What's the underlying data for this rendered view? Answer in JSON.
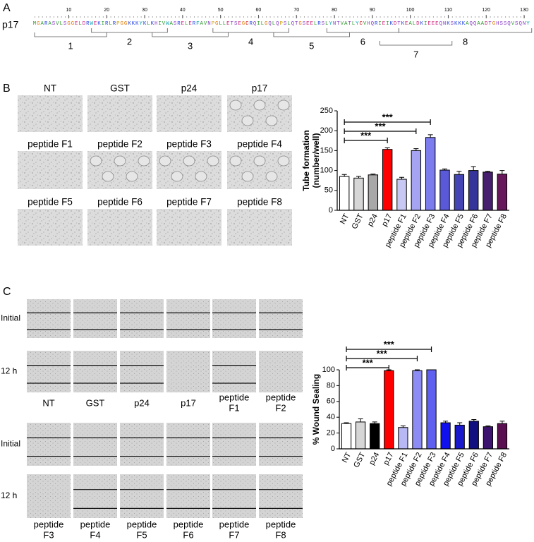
{
  "panel_labels": [
    "A",
    "B",
    "C"
  ],
  "panel_a": {
    "protein": "p17",
    "ruler": [
      10,
      20,
      30,
      40,
      50,
      60,
      70,
      80,
      90,
      100,
      110,
      120,
      130
    ],
    "sequence": "MGARASVLSGGELDRWEKIRLRPGGKKKYKLKHIVWASRELERFAVNPGLLETSEGCRQILGQLQPSLQTGSEELRSLYNTVATLYCVHQRIEIKDTKEALDKIEEEQNKSKKKAQQAADTGHSSQVSQNY",
    "fragments": [
      "1",
      "2",
      "3",
      "4",
      "5",
      "6",
      "7",
      "8"
    ]
  },
  "panel_b": {
    "image_labels": [
      "NT",
      "GST",
      "p24",
      "p17",
      "peptide F1",
      "peptide F2",
      "peptide F3",
      "peptide F4",
      "peptide F5",
      "peptide F6",
      "peptide F7",
      "peptide F8"
    ]
  },
  "panel_c": {
    "row_labels": [
      "Initial",
      "12 h",
      "Initial",
      "12 h"
    ],
    "column_labels": [
      [
        [
          "NT"
        ],
        [
          "GST"
        ],
        [
          "p24"
        ],
        [
          "p17"
        ],
        [
          "peptide",
          "F1"
        ],
        [
          "peptide",
          "F2"
        ]
      ],
      [
        [
          "peptide",
          "F3"
        ],
        [
          "peptide",
          "F4"
        ],
        [
          "peptide",
          "F5"
        ],
        [
          "peptide",
          "F6"
        ],
        [
          "peptide",
          "F7"
        ],
        [
          "peptide",
          "F8"
        ]
      ]
    ]
  },
  "chart_data": [
    {
      "type": "bar",
      "ylabel": [
        "Tube formation",
        "(number/well)"
      ],
      "categories": [
        "NT",
        "GST",
        "p24",
        "p17",
        "peptide F1",
        "peptide F2",
        "peptide F3",
        "peptide F4",
        "peptide F5",
        "peptide F6",
        "peptide F7",
        "peptide F8"
      ],
      "values": [
        85,
        81,
        89,
        153,
        78,
        150,
        183,
        101,
        90,
        100,
        96,
        91
      ],
      "errors": [
        5,
        4,
        2,
        4,
        5,
        5,
        7,
        3,
        8,
        10,
        2,
        9
      ],
      "colors": [
        "#ffffff",
        "#d6d6d6",
        "#a8a8a8",
        "#ff0000",
        "#c8c8f4",
        "#a4a4f2",
        "#7c7cee",
        "#5a5ad8",
        "#4444b4",
        "#34349a",
        "#46206e",
        "#66185a"
      ],
      "ylim": [
        0,
        250
      ],
      "yticks": [
        0,
        50,
        100,
        150,
        200,
        250
      ],
      "significance": [
        {
          "from": "NT",
          "to": "p17",
          "label": "***"
        },
        {
          "from": "NT",
          "to": "peptide F2",
          "label": "***"
        },
        {
          "from": "NT",
          "to": "peptide F3",
          "label": "***"
        }
      ]
    },
    {
      "type": "bar",
      "ylabel": [
        "% Wound Sealing"
      ],
      "categories": [
        "NT",
        "GST",
        "p24",
        "p17",
        "peptide F1",
        "peptide F2",
        "peptide F3",
        "peptide F4",
        "peptide F5",
        "peptide F6",
        "peptide F7",
        "peptide F8"
      ],
      "values": [
        32,
        34,
        32,
        99,
        27,
        99,
        100,
        33,
        30,
        35,
        28,
        32
      ],
      "errors": [
        1,
        4,
        2,
        1,
        2,
        1,
        0,
        2,
        3,
        2,
        1,
        3
      ],
      "colors": [
        "#ffffff",
        "#d6d6d6",
        "#000000",
        "#ff0000",
        "#b8b8f4",
        "#8c8cf4",
        "#6060f0",
        "#1010ee",
        "#1a1acc",
        "#101080",
        "#3c1470",
        "#5a1050"
      ],
      "ylim": [
        0,
        100
      ],
      "yticks": [
        0,
        20,
        40,
        60,
        80,
        100
      ],
      "significance": [
        {
          "from": "NT",
          "to": "p17",
          "label": "***"
        },
        {
          "from": "NT",
          "to": "peptide F2",
          "label": "***"
        },
        {
          "from": "NT",
          "to": "peptide F3",
          "label": "***"
        }
      ]
    }
  ]
}
